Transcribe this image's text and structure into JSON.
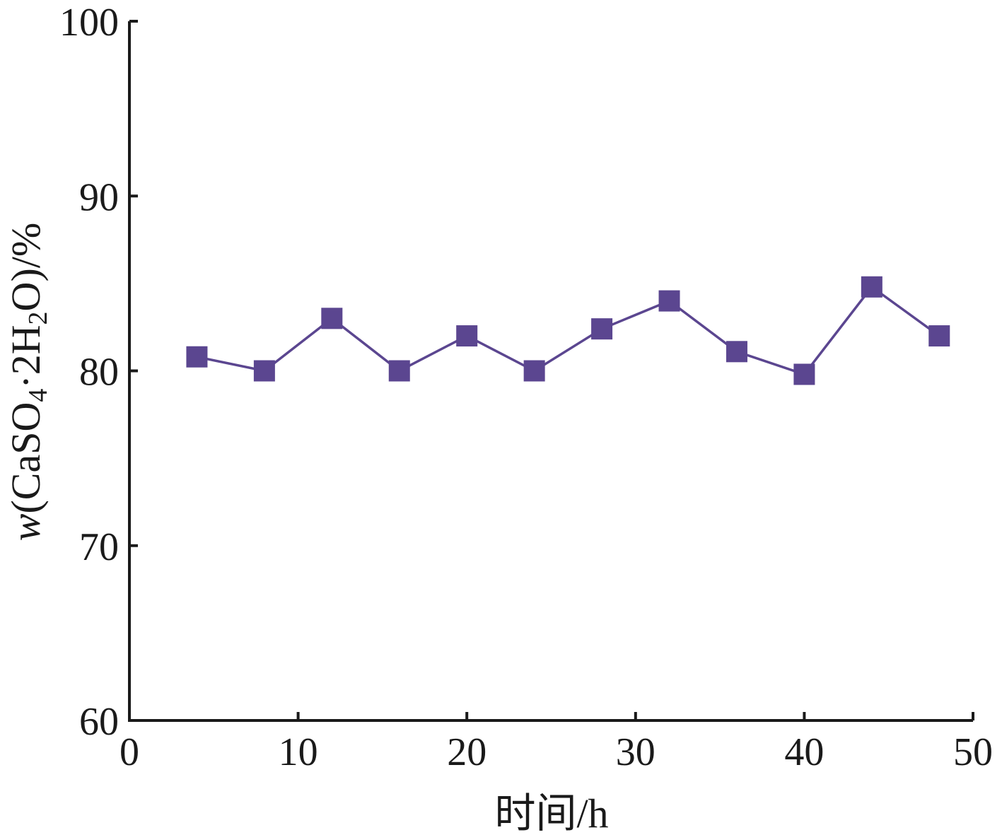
{
  "chart_data": {
    "type": "line",
    "xlabel": "时间/h",
    "ylabel": {
      "prefix": "w",
      "paren_open": "(CaSO",
      "sub1": "4",
      "mid": "·2H",
      "sub2": "2",
      "paren_close": "O)/%"
    },
    "xlim": [
      0,
      50
    ],
    "ylim": [
      60,
      100
    ],
    "xticks": [
      0,
      10,
      20,
      30,
      40,
      50
    ],
    "yticks": [
      60,
      70,
      80,
      90,
      100
    ],
    "grid": false,
    "series": [
      {
        "marker": "square",
        "color": "#5b4690",
        "x": [
          4,
          8,
          12,
          16,
          20,
          24,
          28,
          32,
          36,
          40,
          44,
          48
        ],
        "y": [
          80.8,
          80.0,
          83.0,
          80.0,
          82.0,
          80.0,
          82.4,
          84.0,
          81.1,
          79.8,
          84.8,
          82.0
        ]
      }
    ]
  }
}
